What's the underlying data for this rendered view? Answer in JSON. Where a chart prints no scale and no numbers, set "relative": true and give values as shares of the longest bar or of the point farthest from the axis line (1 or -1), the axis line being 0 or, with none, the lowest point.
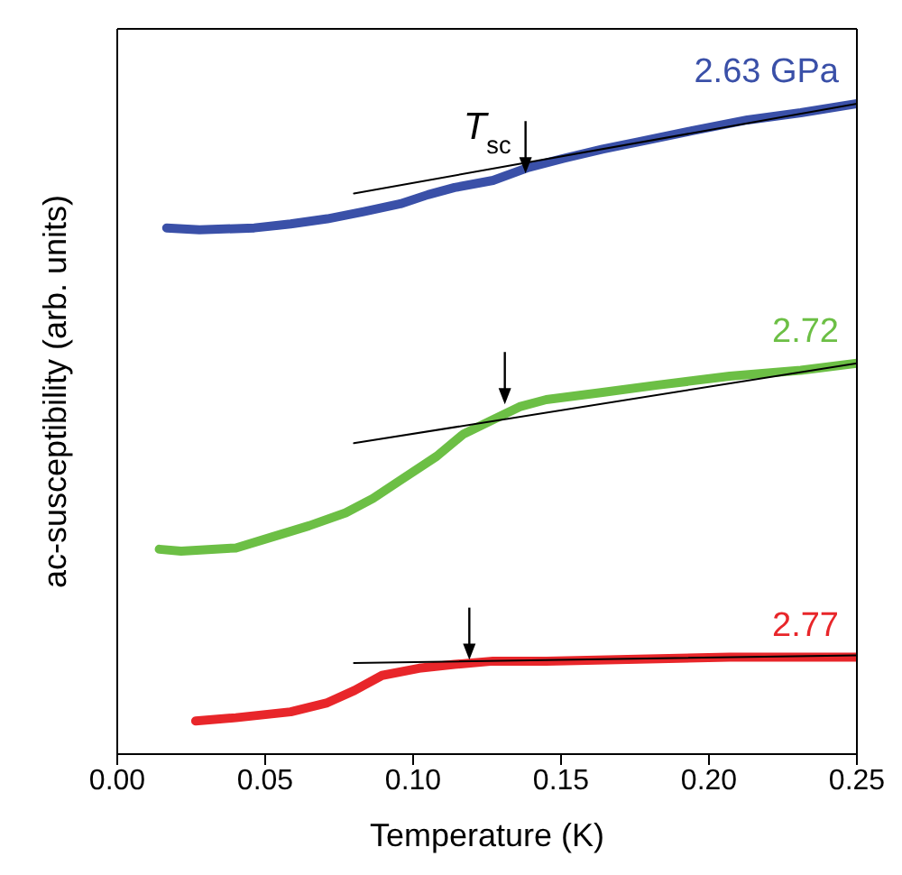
{
  "chart_data": {
    "type": "line",
    "relative": true,
    "xlabel": "Temperature (K)",
    "ylabel": "ac-susceptibility (arb. units)",
    "xlim": [
      0,
      0.25
    ],
    "xticks": [
      {
        "value": 0,
        "label": "0.00"
      },
      {
        "value": 0.05,
        "label": "0.05"
      },
      {
        "value": 0.1,
        "label": "0.10"
      },
      {
        "value": 0.15,
        "label": "0.15"
      },
      {
        "value": 0.2,
        "label": "0.20"
      },
      {
        "value": 0.25,
        "label": "0.25"
      }
    ],
    "marker": "none",
    "series": [
      {
        "name": "2.63 GPa",
        "color": "#3a50a8",
        "x": [
          0.0167,
          0.0278,
          0.0463,
          0.0586,
          0.071,
          0.0833,
          0.0957,
          0.105,
          0.114,
          0.127,
          0.139,
          0.151,
          0.164,
          0.176,
          0.194,
          0.213,
          0.231,
          0.25
        ],
        "values": [
          0.809,
          0.806,
          0.809,
          0.815,
          0.823,
          0.834,
          0.846,
          0.86,
          0.871,
          0.882,
          0.902,
          0.916,
          0.93,
          0.941,
          0.958,
          0.975,
          0.986,
          1.0
        ]
      },
      {
        "name": "2.72",
        "color": "#6cbf45",
        "x": [
          0.0142,
          0.0216,
          0.0401,
          0.0525,
          0.0648,
          0.0772,
          0.0864,
          0.0957,
          0.108,
          0.117,
          0.127,
          0.136,
          0.145,
          0.164,
          0.182,
          0.207,
          0.231,
          0.25
        ],
        "values": [
          0.315,
          0.312,
          0.317,
          0.334,
          0.351,
          0.371,
          0.393,
          0.421,
          0.458,
          0.492,
          0.514,
          0.534,
          0.545,
          0.556,
          0.567,
          0.581,
          0.59,
          0.601
        ]
      },
      {
        "name": "2.77",
        "color": "#e8262a",
        "x": [
          0.0265,
          0.0401,
          0.0586,
          0.071,
          0.0802,
          0.0895,
          0.102,
          0.114,
          0.127,
          0.145,
          0.176,
          0.207,
          0.25
        ],
        "values": [
          0.051,
          0.056,
          0.065,
          0.079,
          0.098,
          0.121,
          0.132,
          0.138,
          0.143,
          0.143,
          0.146,
          0.149,
          0.149
        ]
      },
      {
        "type": "line",
        "color": "#000000",
        "x": [
          0.08,
          0.25
        ],
        "values": [
          0.862,
          1.0
        ]
      },
      {
        "type": "line",
        "color": "#000000",
        "x": [
          0.08,
          0.25
        ],
        "values": [
          0.478,
          0.601
        ]
      },
      {
        "type": "line",
        "color": "#000000",
        "x": [
          0.08,
          0.25
        ],
        "values": [
          0.14,
          0.152
        ]
      }
    ],
    "annotations": [
      {
        "text": "T$_{sc}$",
        "x": 0.138,
        "y": 0.89
      }
    ]
  }
}
